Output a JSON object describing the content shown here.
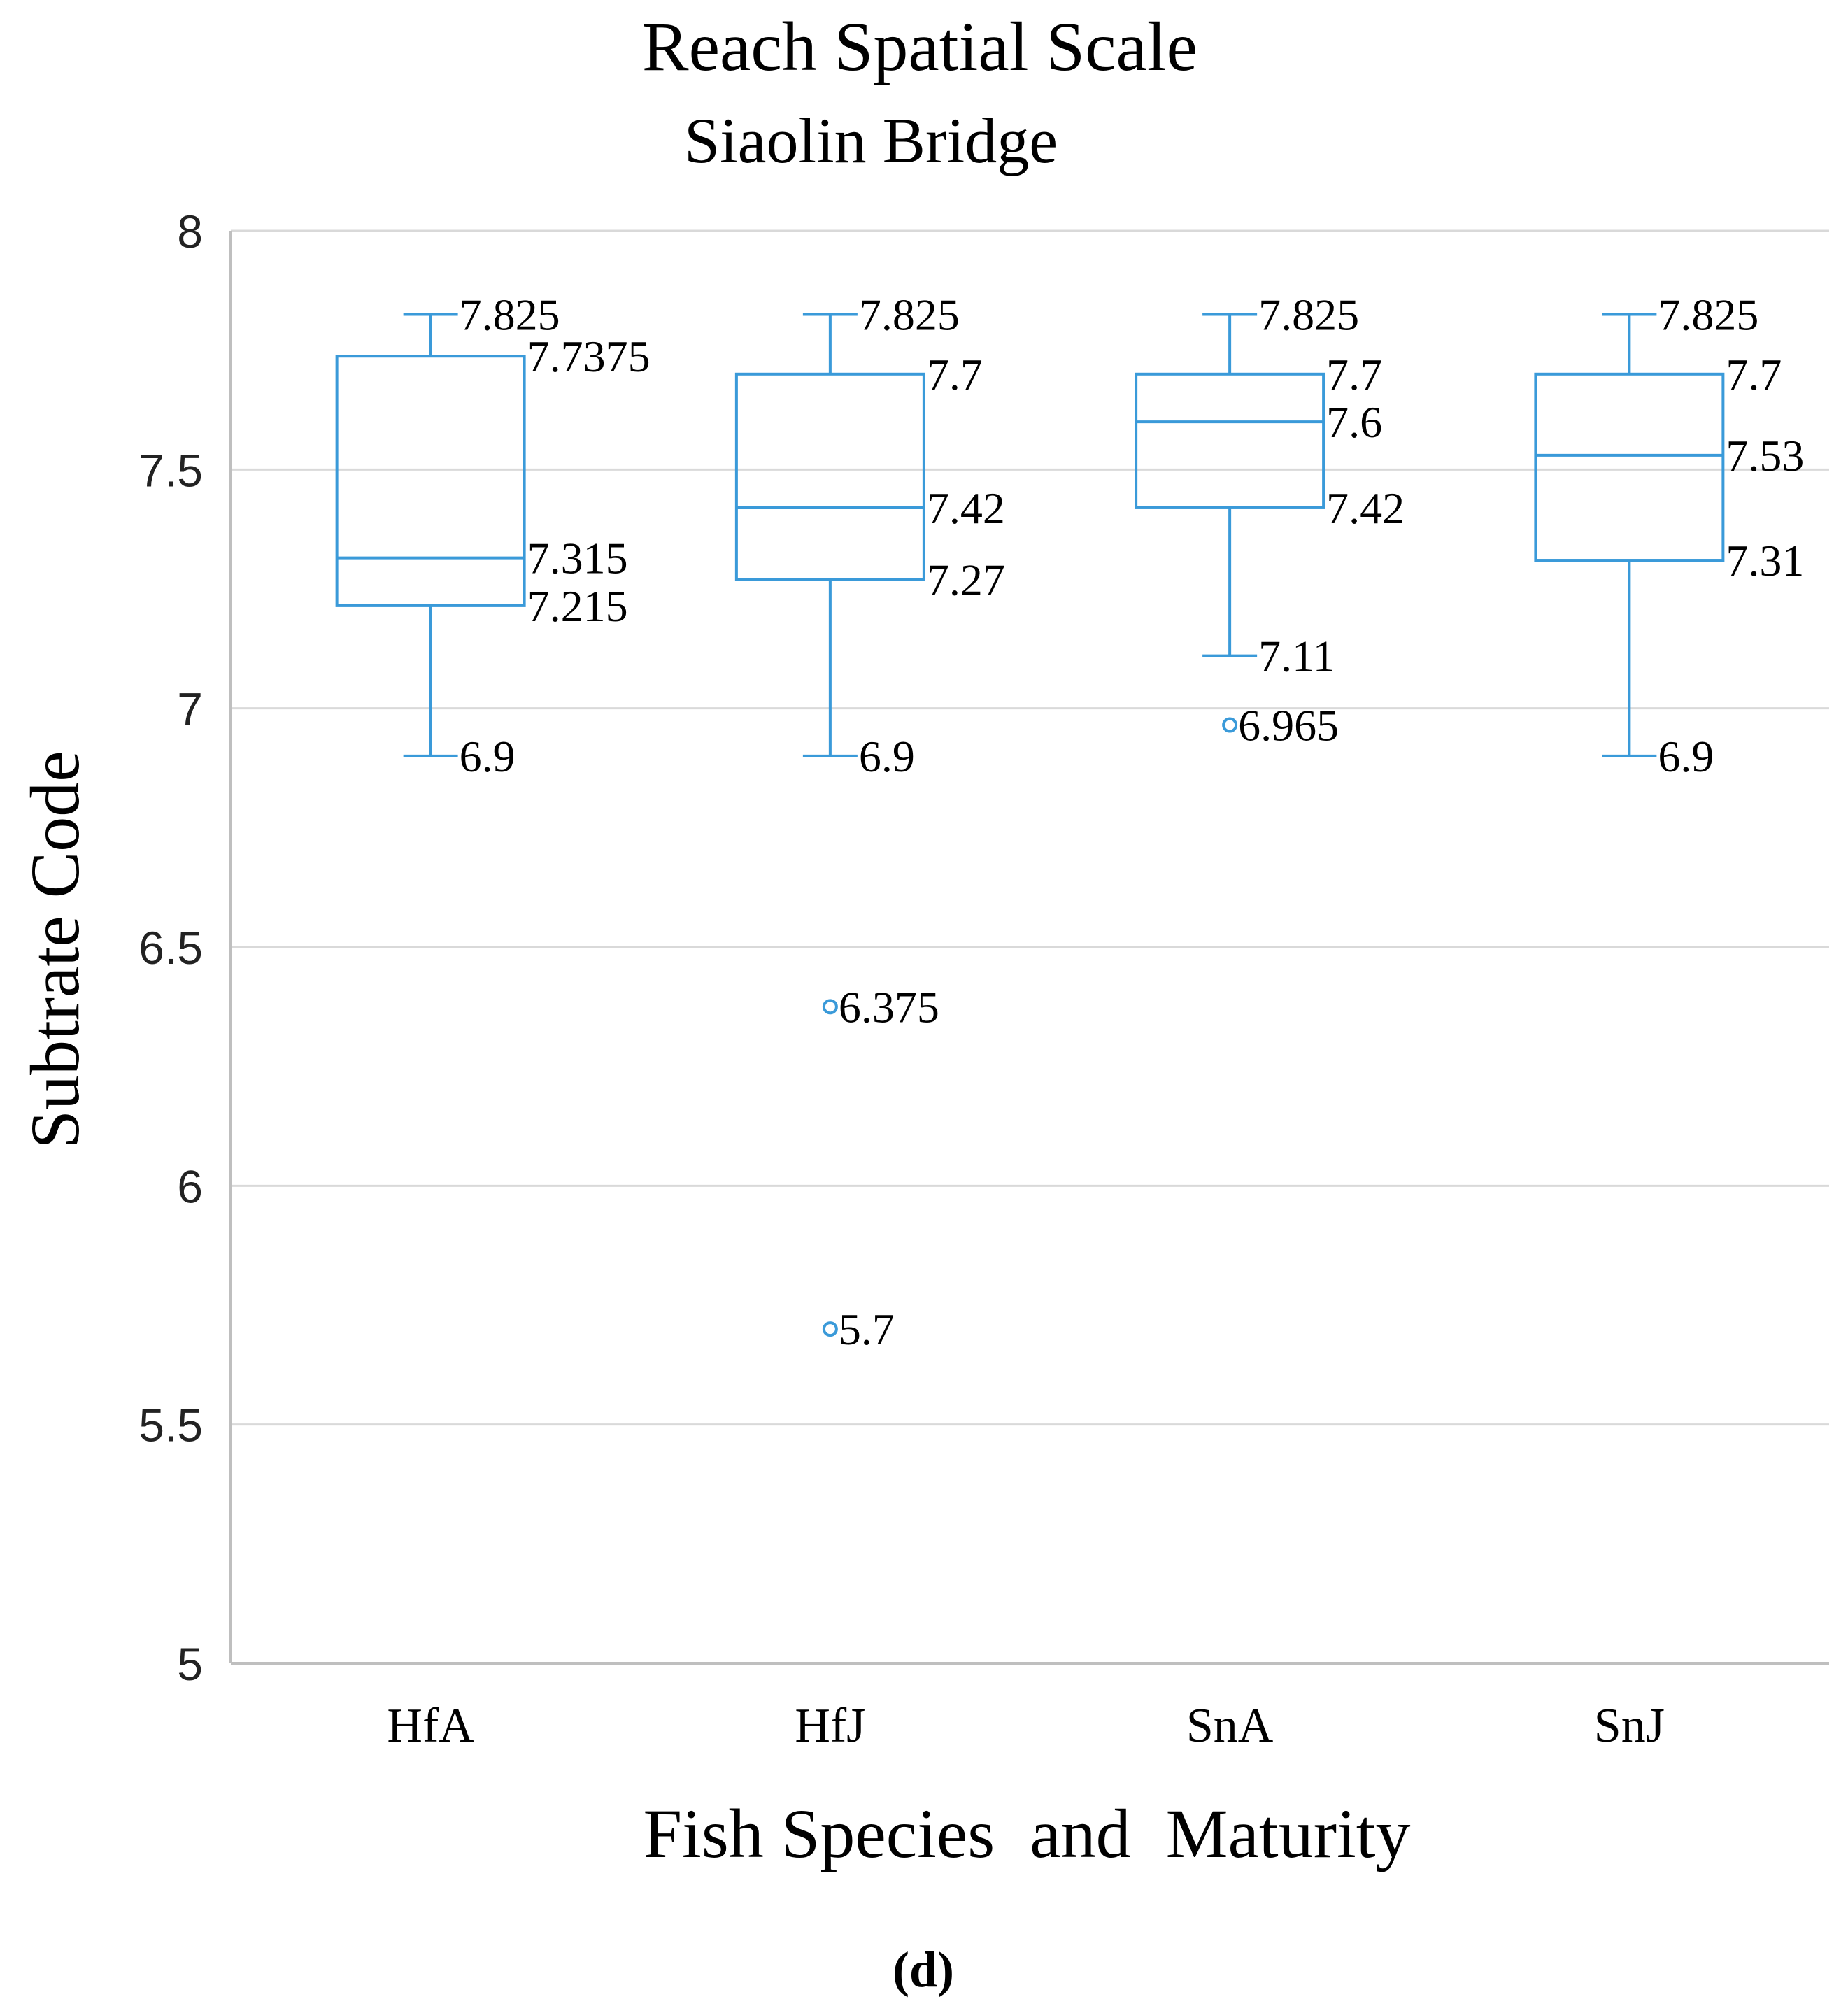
{
  "chart_data": {
    "type": "box",
    "title": "Reach Spatial Scale",
    "subtitle": "Siaolin Bridge",
    "xlabel": "Fish Species  and  Maturity",
    "ylabel": "Subtrate Code",
    "ylim": [
      5,
      8
    ],
    "yticks": [
      "5",
      "5.5",
      "6",
      "6.5",
      "7",
      "7.5",
      "8"
    ],
    "ytick_values": [
      5,
      5.5,
      6,
      6.5,
      7,
      7.5,
      8
    ],
    "grid": true,
    "caption": "(d)",
    "color": "#3A9AD9",
    "grid_color": "#d9d9d9",
    "categories": [
      "HfA",
      "HfJ",
      "SnA",
      "SnJ"
    ],
    "boxes": [
      {
        "category": "HfA",
        "max": 7.825,
        "q3": 7.7375,
        "median": 7.315,
        "q1": 7.215,
        "min": 6.9,
        "outliers": [],
        "labels": {
          "max": "7.825",
          "q3": "7.7375",
          "median": "7.315",
          "q1": "7.215",
          "min": "6.9"
        },
        "outlier_labels": []
      },
      {
        "category": "HfJ",
        "max": 7.825,
        "q3": 7.7,
        "median": 7.42,
        "q1": 7.27,
        "min": 6.9,
        "outliers": [
          6.375,
          5.7
        ],
        "labels": {
          "max": "7.825",
          "q3": "7.7",
          "median": "7.42",
          "q1": "7.27",
          "min": "6.9"
        },
        "outlier_labels": [
          "6.375",
          "5.7"
        ]
      },
      {
        "category": "SnA",
        "max": 7.825,
        "q3": 7.7,
        "median": 7.6,
        "q1": 7.42,
        "min": 7.11,
        "outliers": [
          6.965
        ],
        "labels": {
          "max": "7.825",
          "q3": "7.7",
          "median": "7.6",
          "q1": "7.42",
          "min": "7.11"
        },
        "outlier_labels": [
          "6.965"
        ]
      },
      {
        "category": "SnJ",
        "max": 7.825,
        "q3": 7.7,
        "median": 7.53,
        "q1": 7.31,
        "min": 6.9,
        "outliers": [],
        "labels": {
          "max": "7.825",
          "q3": "7.7",
          "median": "7.53",
          "q1": "7.31",
          "min": "6.9"
        },
        "outlier_labels": []
      }
    ]
  }
}
